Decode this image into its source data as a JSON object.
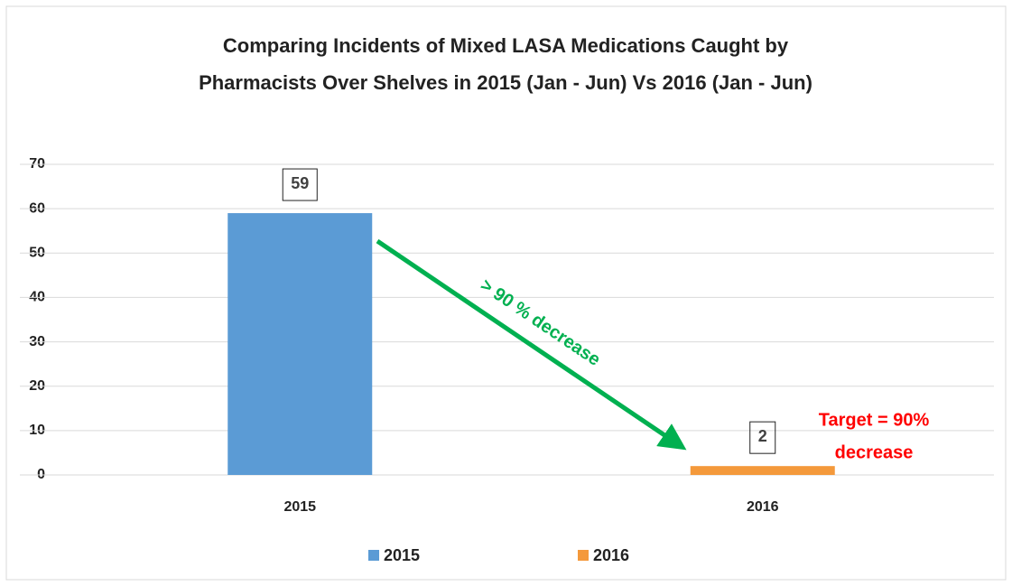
{
  "chart_data": {
    "type": "bar",
    "title": [
      "Comparing Incidents of Mixed LASA Medications Caught by",
      "Pharmacists Over Shelves in 2015 (Jan - Jun) Vs 2016 (Jan - Jun)"
    ],
    "categories": [
      "2015",
      "2016"
    ],
    "series": [
      {
        "name": "2015",
        "color": "#5b9bd5",
        "values": [
          59,
          null
        ]
      },
      {
        "name": "2016",
        "color": "#f4993b",
        "values": [
          null,
          2
        ]
      }
    ],
    "ylim": [
      0,
      70
    ],
    "yticks": [
      0,
      10,
      20,
      30,
      40,
      50,
      60,
      70
    ],
    "grid": true,
    "legend": "bottom",
    "annotations": {
      "arrow": "> 90 % decrease",
      "target": [
        "Target = 90%",
        "decrease"
      ]
    }
  }
}
